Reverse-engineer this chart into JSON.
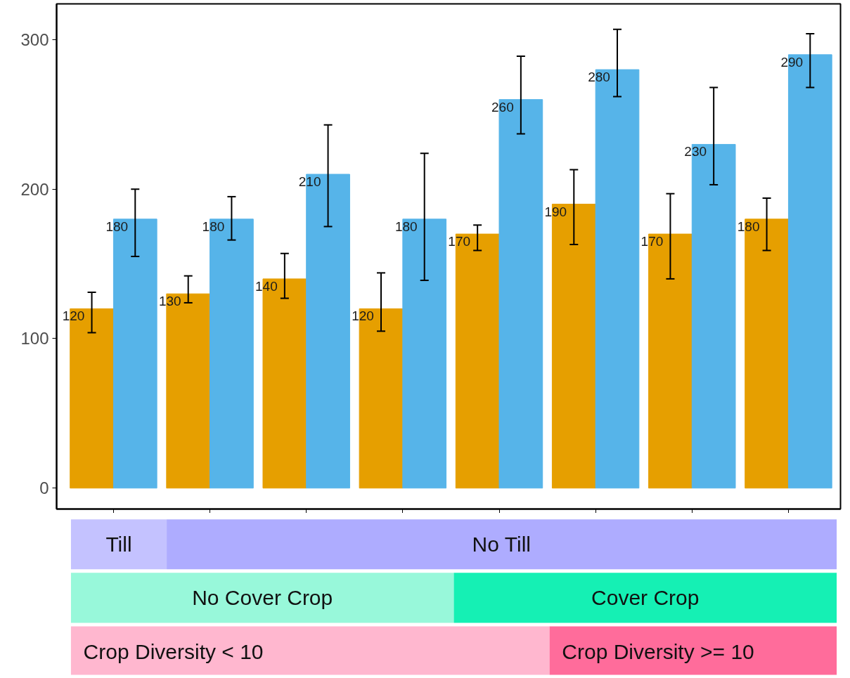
{
  "chart_data": {
    "type": "bar",
    "categories": [
      null,
      null,
      null,
      null,
      null,
      null,
      null,
      null
    ],
    "series": [
      {
        "color": "#e69f00",
        "values": [
          120,
          130,
          140,
          120,
          170,
          190,
          170,
          180
        ],
        "errors": [
          [
            104,
            131
          ],
          [
            124,
            142
          ],
          [
            127,
            157
          ],
          [
            105,
            144
          ],
          [
            159,
            176
          ],
          [
            163,
            213
          ],
          [
            140,
            197
          ],
          [
            159,
            194
          ]
        ]
      },
      {
        "color": "#56b4e9",
        "values": [
          180,
          180,
          210,
          180,
          260,
          280,
          230,
          290
        ],
        "errors": [
          [
            155,
            200
          ],
          [
            166,
            195
          ],
          [
            175,
            243
          ],
          [
            139,
            224
          ],
          [
            237,
            289
          ],
          [
            262,
            307
          ],
          [
            203,
            268
          ],
          [
            268,
            304
          ]
        ]
      }
    ],
    "ylim": [
      -14,
      324
    ],
    "yticks": [
      0,
      100,
      200,
      300
    ],
    "grid": false,
    "tick_labels": "y",
    "data_labels": true,
    "annotations": [
      "Till",
      "No Till",
      "No Cover Crop",
      "Cover Crop",
      "Crop Diversity < 10",
      "Crop Diversity >= 10"
    ]
  }
}
